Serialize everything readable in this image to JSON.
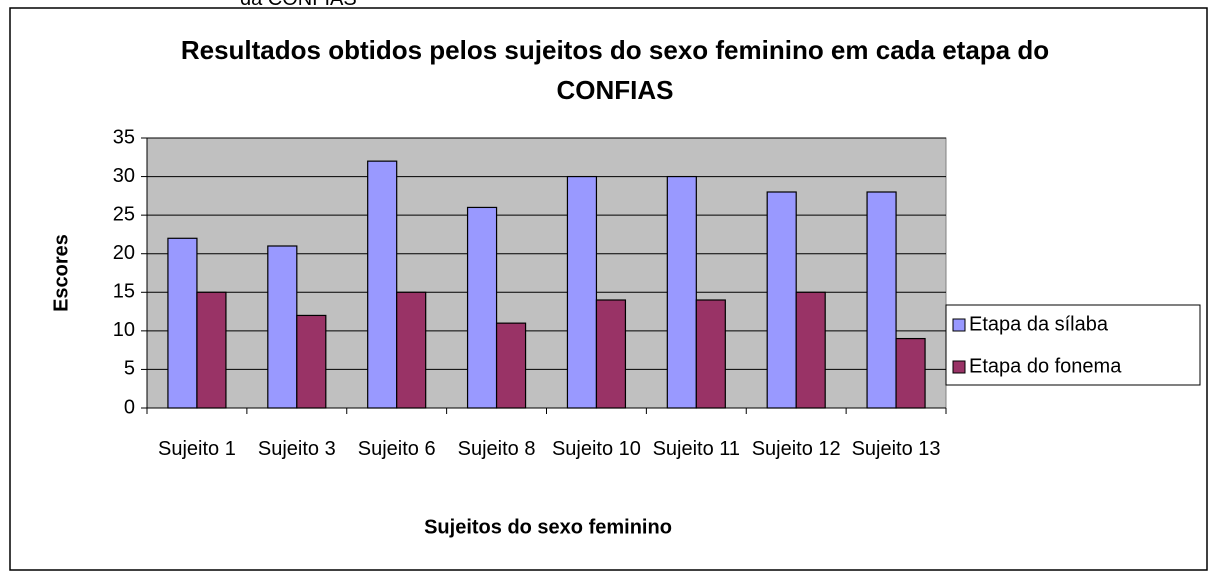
{
  "caption": "da CONFIAS",
  "chart_data": {
    "type": "bar",
    "title": "Resultados obtidos pelos sujeitos do sexo feminino em cada etapa do CONFIAS",
    "x_label": "Sujeitos do sexo feminino",
    "y_label": "Escores",
    "categories": [
      "Sujeito 1",
      "Sujeito 3",
      "Sujeito 6",
      "Sujeito 8",
      "Sujeito 10",
      "Sujeito 11",
      "Sujeito 12",
      "Sujeito 13"
    ],
    "series": [
      {
        "name": "Etapa da sílaba",
        "color": "#9999ff",
        "values": [
          22,
          21,
          32,
          26,
          30,
          30,
          28,
          28
        ]
      },
      {
        "name": "Etapa do fonema",
        "color": "#993366",
        "values": [
          15,
          12,
          15,
          11,
          14,
          14,
          15,
          9
        ]
      }
    ],
    "ylim": [
      0,
      35
    ],
    "yticks": [
      0,
      5,
      10,
      15,
      20,
      25,
      30,
      35
    ],
    "grid": true,
    "legend": "right"
  }
}
